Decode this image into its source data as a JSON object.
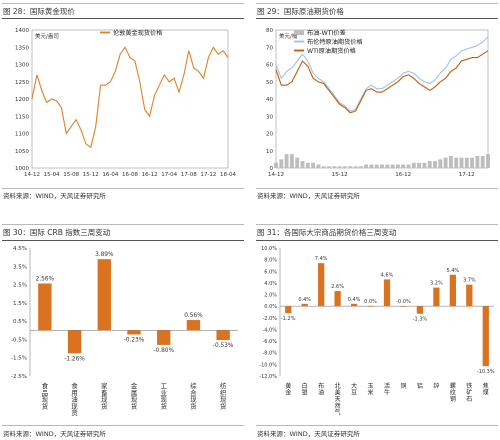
{
  "captions": {
    "c28": "图 28：国际黄金现价",
    "c29": "图 29：国际原油期货价格",
    "c30": "图 30：国际 CRB 指数三周变动",
    "c31": "图 31：各国际大宗商品期货价格三周变动"
  },
  "source": "资料来源：WIND，天风证券研究所",
  "chart_data": [
    {
      "id": "gold",
      "type": "line",
      "title": "",
      "ylabel": "美元/盎司",
      "ylim": [
        1000,
        1400
      ],
      "yticks": [
        1000,
        1050,
        1100,
        1150,
        1200,
        1250,
        1300,
        1350,
        1400
      ],
      "xticklabels": [
        "14-12",
        "15-04",
        "15-08",
        "15-12",
        "16-04",
        "16-08",
        "16-12",
        "17-04",
        "17-08",
        "17-12",
        "18-04"
      ],
      "xtick_index": [
        0,
        4,
        8,
        12,
        16,
        20,
        24,
        28,
        32,
        36,
        40
      ],
      "colors": {
        "line": "#e0802a"
      },
      "series": [
        {
          "name": "伦敦黄金现货价格",
          "values": [
            1200,
            1270,
            1225,
            1190,
            1200,
            1195,
            1175,
            1100,
            1120,
            1140,
            1110,
            1070,
            1060,
            1120,
            1240,
            1240,
            1250,
            1280,
            1330,
            1350,
            1320,
            1310,
            1250,
            1170,
            1150,
            1210,
            1240,
            1270,
            1250,
            1260,
            1220,
            1270,
            1340,
            1290,
            1280,
            1260,
            1320,
            1350,
            1330,
            1340,
            1320
          ]
        }
      ]
    },
    {
      "id": "oil",
      "type": "line",
      "title": "",
      "ylabel": "美元/桶",
      "ylim": [
        0,
        80
      ],
      "yticks": [
        0,
        10,
        20,
        30,
        40,
        50,
        60,
        70,
        80
      ],
      "xticklabels": [
        "14-12",
        "15-12",
        "16-12",
        "17-12"
      ],
      "xtick_index": [
        0,
        12,
        24,
        36
      ],
      "colors": {
        "spread": "#bdbdbd",
        "brent": "#9ec3e6",
        "wti": "#c55a11"
      },
      "series": [
        {
          "name": "布油-WTI价差",
          "values": [
            3,
            5,
            8,
            8,
            6,
            4,
            3,
            3,
            2,
            1,
            1,
            1,
            1,
            1,
            1,
            1,
            1,
            2,
            2,
            2,
            2,
            2,
            2,
            2,
            2,
            2,
            3,
            3,
            3,
            4,
            4,
            5,
            6,
            7,
            6,
            6,
            6,
            6,
            7,
            7,
            8
          ]
        },
        {
          "name": "布伦特原油期货价格",
          "values": [
            60,
            52,
            56,
            58,
            62,
            66,
            62,
            55,
            52,
            50,
            46,
            42,
            38,
            36,
            33,
            34,
            40,
            46,
            48,
            46,
            46,
            48,
            50,
            52,
            55,
            56,
            55,
            52,
            50,
            49,
            51,
            55,
            58,
            63,
            65,
            68,
            69,
            70,
            71,
            73,
            76
          ]
        },
        {
          "name": "WTI原油期货价格",
          "values": [
            57,
            48,
            48,
            50,
            56,
            62,
            59,
            52,
            50,
            49,
            45,
            41,
            37,
            35,
            32,
            33,
            39,
            45,
            46,
            44,
            44,
            46,
            48,
            50,
            53,
            54,
            52,
            49,
            47,
            45,
            47,
            50,
            52,
            56,
            58,
            62,
            63,
            64,
            64,
            66,
            68
          ]
        }
      ]
    },
    {
      "id": "crb",
      "type": "bar",
      "title": "",
      "ylim": [
        -2.5,
        4.5
      ],
      "yticks": [
        "-2.5%",
        "-1.5%",
        "-0.5%",
        "0.5%",
        "1.5%",
        "2.5%",
        "3.5%",
        "4.5%"
      ],
      "ytick_values": [
        -2.5,
        -1.5,
        -0.5,
        0.5,
        1.5,
        2.5,
        3.5,
        4.5
      ],
      "colors": {
        "bar": "#d9731f"
      },
      "categories": [
        "食品现货",
        "食用油现货",
        "家畜现货",
        "金属现货",
        "工业现货",
        "综合现货",
        "纺织现货"
      ],
      "values": [
        2.56,
        -1.26,
        3.89,
        -0.23,
        -0.8,
        0.56,
        -0.53
      ],
      "labels": [
        "2.56%",
        "-1.26%",
        "3.89%",
        "-0.23%",
        "-0.80%",
        "0.56%",
        "-0.53%"
      ]
    },
    {
      "id": "commodities",
      "type": "bar",
      "title": "",
      "ylim": [
        -12,
        10
      ],
      "yticks": [
        "-12.0%",
        "-10.0%",
        "-8.0%",
        "-6.0%",
        "-4.0%",
        "-2.0%",
        "0.0%",
        "2.0%",
        "4.0%",
        "6.0%",
        "8.0%",
        "10.0%"
      ],
      "ytick_values": [
        -12,
        -10,
        -8,
        -6,
        -4,
        -2,
        0,
        2,
        4,
        6,
        8,
        10
      ],
      "colors": {
        "bar": "#d9731f"
      },
      "categories": [
        "黄金",
        "白银",
        "布油",
        "北美天然气",
        "大豆",
        "玉米",
        "活牛",
        "铜",
        "铝",
        "锌",
        "螺纹钢",
        "铁矿石",
        "焦煤"
      ],
      "values": [
        -1.2,
        0.4,
        7.4,
        2.6,
        0.4,
        0.0,
        4.6,
        -0.0,
        -1.3,
        3.2,
        5.4,
        3.7,
        -10.3
      ],
      "labels": [
        "-1.2%",
        "0.4%",
        "7.4%",
        "2.6%",
        "0.4%",
        "0.0%",
        "4.6%",
        "-0.0%",
        "-1.3%",
        "3.2%",
        "5.4%",
        "3.7%",
        "-10.3%"
      ]
    }
  ]
}
